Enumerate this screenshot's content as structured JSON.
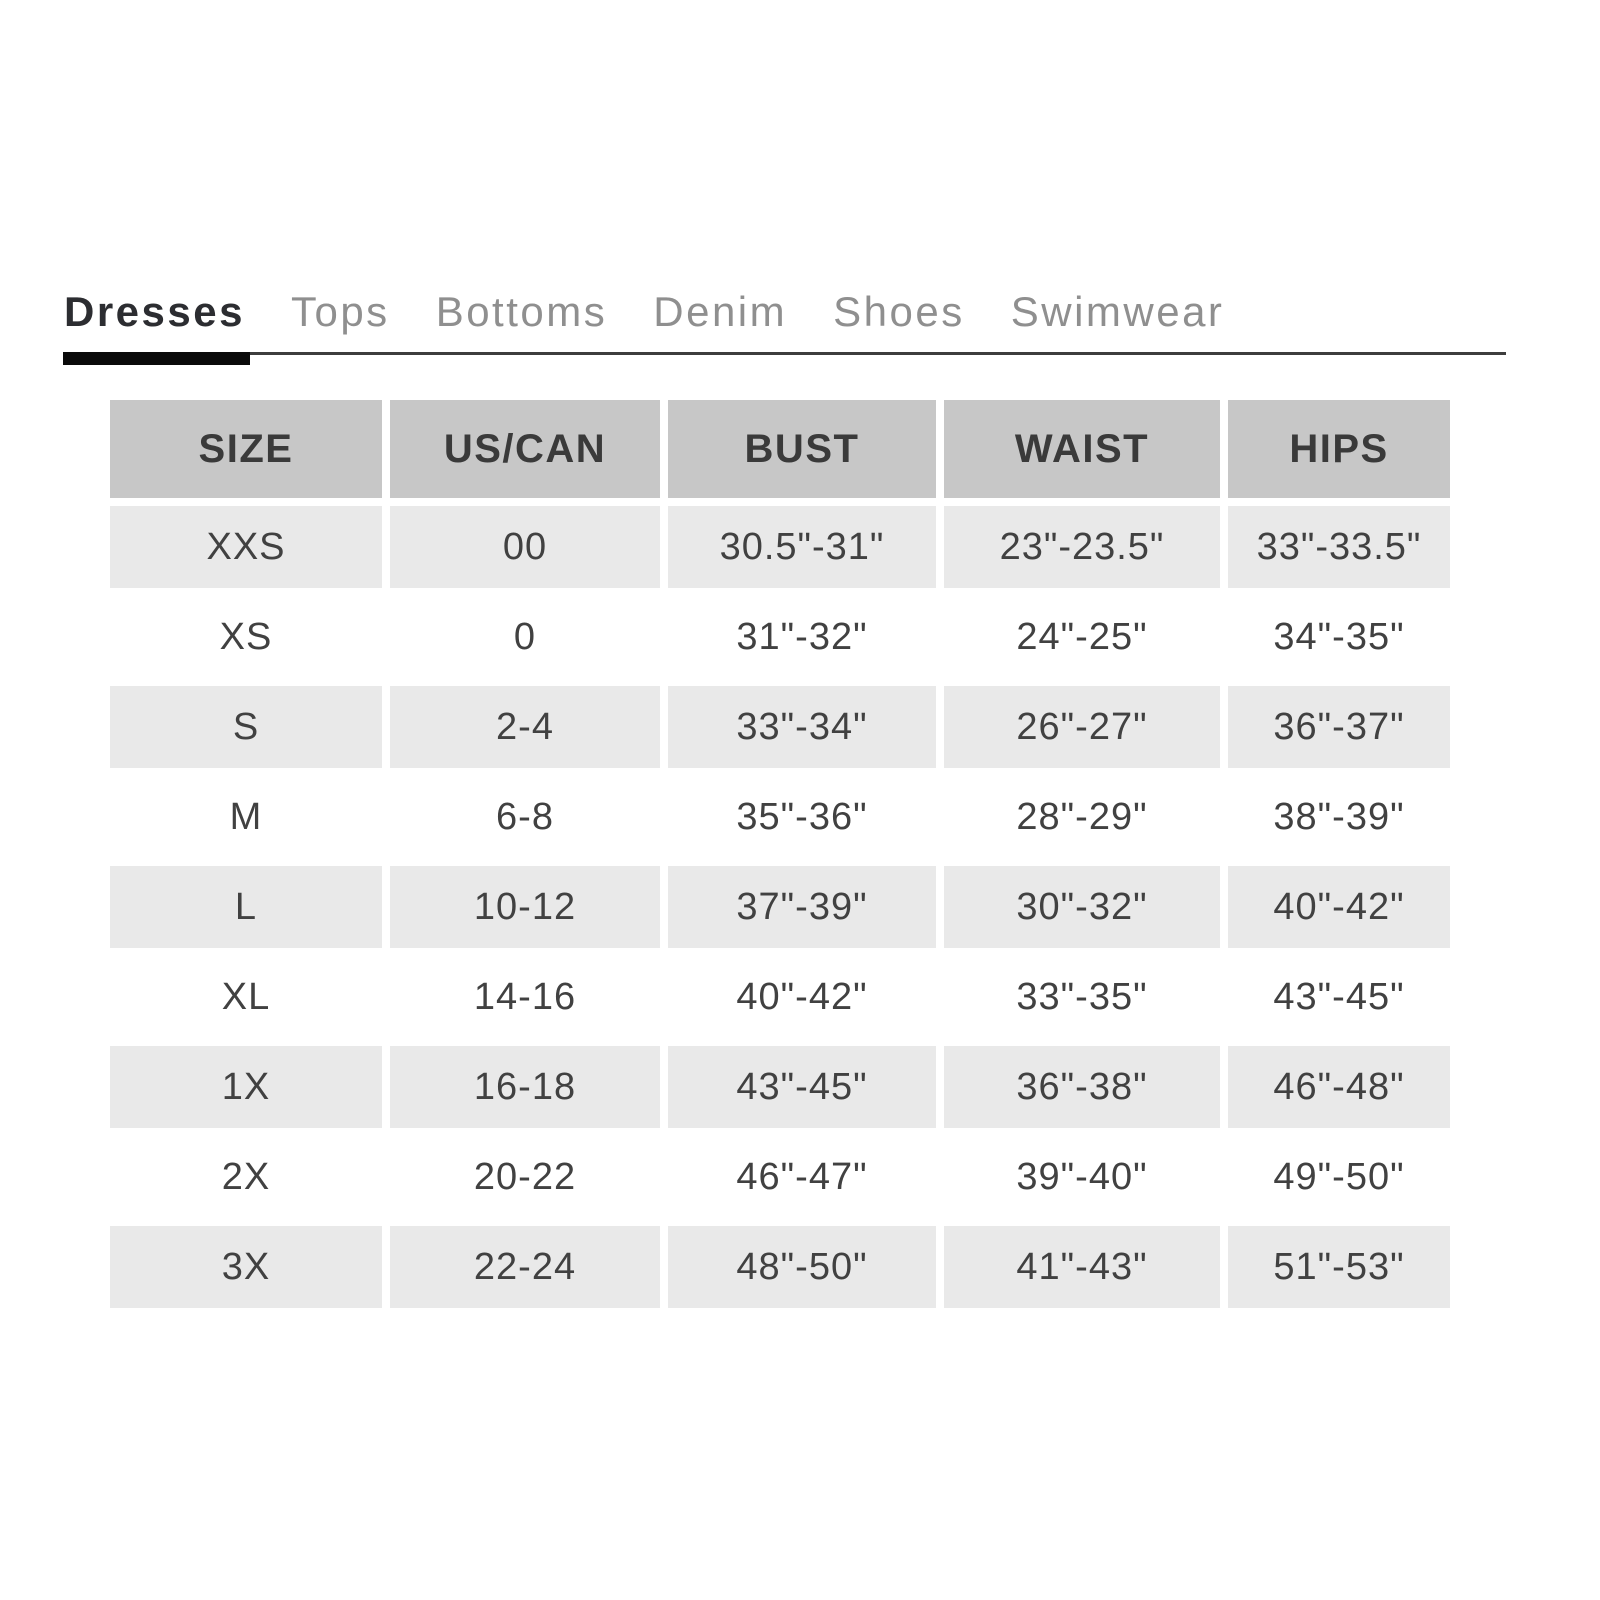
{
  "tabs": {
    "items": [
      {
        "label": "Dresses",
        "active": true
      },
      {
        "label": "Tops",
        "active": false
      },
      {
        "label": "Bottoms",
        "active": false
      },
      {
        "label": "Denim",
        "active": false
      },
      {
        "label": "Shoes",
        "active": false
      },
      {
        "label": "Swimwear",
        "active": false
      }
    ]
  },
  "size_chart": {
    "columns": [
      "SIZE",
      "US/CAN",
      "BUST",
      "WAIST",
      "HIPS"
    ],
    "rows": [
      [
        "XXS",
        "00",
        "30.5\"-31\"",
        "23\"-23.5\"",
        "33\"-33.5\""
      ],
      [
        "XS",
        "0",
        "31\"-32\"",
        "24\"-25\"",
        "34\"-35\""
      ],
      [
        "S",
        "2-4",
        "33\"-34\"",
        "26\"-27\"",
        "36\"-37\""
      ],
      [
        "M",
        "6-8",
        "35\"-36\"",
        "28\"-29\"",
        "38\"-39\""
      ],
      [
        "L",
        "10-12",
        "37\"-39\"",
        "30\"-32\"",
        "40\"-42\""
      ],
      [
        "XL",
        "14-16",
        "40\"-42\"",
        "33\"-35\"",
        "43\"-45\""
      ],
      [
        "1X",
        "16-18",
        "43\"-45\"",
        "36\"-38\"",
        "46\"-48\""
      ],
      [
        "2X",
        "20-22",
        "46\"-47\"",
        "39\"-40\"",
        "49\"-50\""
      ],
      [
        "3X",
        "22-24",
        "48\"-50\"",
        "41\"-43\"",
        "51\"-53\""
      ]
    ]
  },
  "colors": {
    "header_bg": "#c7c7c7",
    "alt_row_bg": "#e9e9e9",
    "active_tab_text": "#2c2d31",
    "inactive_tab_text": "#8f8f8f",
    "tab_rule": "#3d3d3d",
    "active_tab_underline": "#0a0a0a",
    "cell_text": "#414141"
  }
}
